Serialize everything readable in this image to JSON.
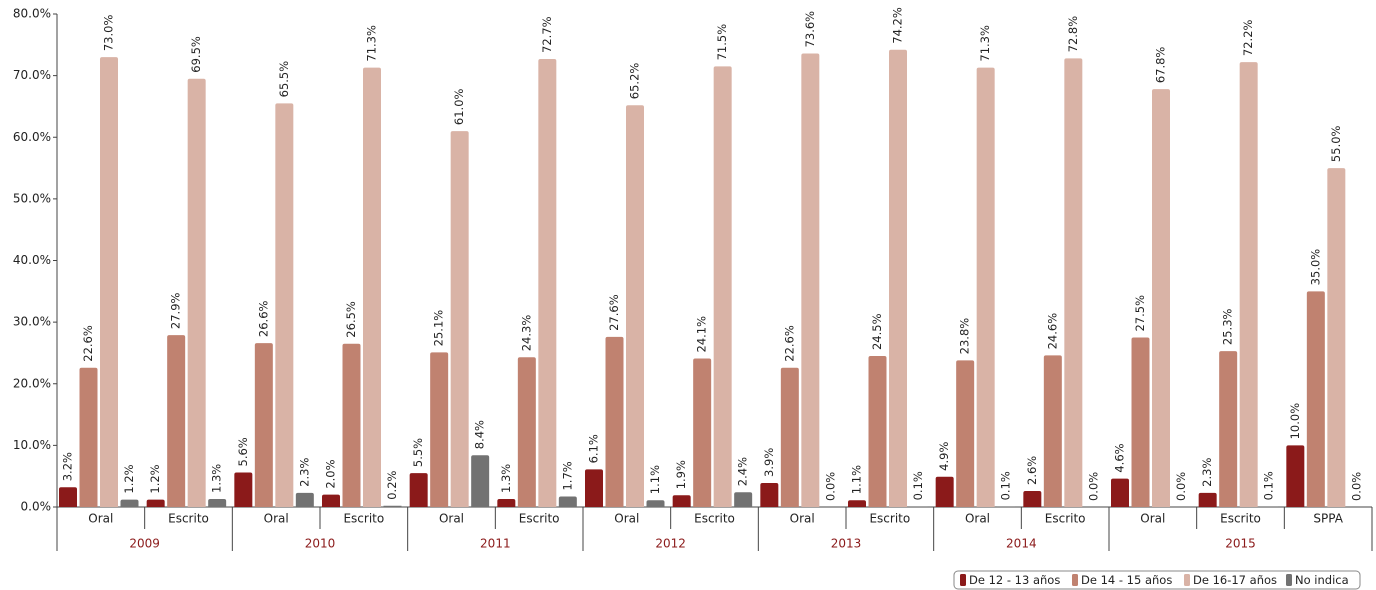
{
  "chart_data": {
    "type": "bar",
    "groups": [
      {
        "name": "2009",
        "categories": [
          "Oral",
          "Escrito"
        ]
      },
      {
        "name": "2010",
        "categories": [
          "Oral",
          "Escrito"
        ]
      },
      {
        "name": "2011",
        "categories": [
          "Oral",
          "Escrito"
        ]
      },
      {
        "name": "2012",
        "categories": [
          "Oral",
          "Escrito"
        ]
      },
      {
        "name": "2013",
        "categories": [
          "Oral",
          "Escrito"
        ]
      },
      {
        "name": "2014",
        "categories": [
          "Oral",
          "Escrito"
        ]
      },
      {
        "name": "2015",
        "categories": [
          "Oral",
          "Escrito",
          "SPPA"
        ]
      }
    ],
    "series": [
      {
        "name": "De 12 - 13 años",
        "color": "#8b1a1a",
        "values": [
          3.2,
          1.2,
          5.6,
          2.0,
          5.5,
          1.3,
          6.1,
          1.9,
          3.9,
          1.1,
          4.9,
          2.6,
          4.6,
          2.3,
          10.0
        ],
        "value_labels": [
          "3.2%",
          "1.2%",
          "5.6%",
          "2.0%",
          "5.5%",
          "1.3%",
          "6.1%",
          "1.9%",
          "3.9%",
          "1.1%",
          "4.9%",
          "2.6%",
          "4.6%",
          "2.3%",
          "10.0%"
        ]
      },
      {
        "name": "De 14 - 15 años",
        "color": "#c08270",
        "values": [
          22.6,
          27.9,
          26.6,
          26.5,
          25.1,
          24.3,
          27.6,
          24.1,
          22.6,
          24.5,
          23.8,
          24.6,
          27.5,
          25.3,
          35.0
        ],
        "value_labels": [
          "22.6%",
          "27.9%",
          "26.6%",
          "26.5%",
          "25.1%",
          "24.3%",
          "27.6%",
          "24.1%",
          "22.6%",
          "24.5%",
          "23.8%",
          "24.6%",
          "27.5%",
          "25.3%",
          "35.0%"
        ]
      },
      {
        "name": "De 16-17 años",
        "color": "#d9b3a6",
        "values": [
          73.0,
          69.5,
          65.5,
          71.3,
          61.0,
          72.7,
          65.2,
          71.5,
          73.6,
          74.2,
          71.3,
          72.8,
          67.8,
          72.2,
          55.0
        ],
        "value_labels": [
          "73.0%",
          "69.5%",
          "65.5%",
          "71.3%",
          "61.0%",
          "72.7%",
          "65.2%",
          "71.5%",
          "73.6%",
          "74.2%",
          "71.3%",
          "72.8%",
          "67.8%",
          "72.2%",
          "55.0%"
        ]
      },
      {
        "name": "No indica",
        "color": "#727272",
        "values": [
          1.2,
          1.3,
          2.3,
          0.2,
          8.4,
          1.7,
          1.1,
          2.4,
          0.0,
          0.1,
          0.1,
          0.0,
          0.0,
          0.1,
          0.0
        ],
        "value_labels": [
          "1.2%",
          "1.3%",
          "2.3%",
          "0.2%",
          "8.4%",
          "1.7%",
          "1.1%",
          "2.4%",
          "0.0%",
          "0.1%",
          "0.1%",
          "0.0%",
          "0.0%",
          "0.1%",
          "0.0%"
        ]
      }
    ],
    "ylim": [
      0,
      80
    ],
    "yticks": [
      {
        "value": 0,
        "label": "0.0%"
      },
      {
        "value": 10,
        "label": "10.0%"
      },
      {
        "value": 20,
        "label": "20.0%"
      },
      {
        "value": 30,
        "label": "30.0%"
      },
      {
        "value": 40,
        "label": "40.0%"
      },
      {
        "value": 50,
        "label": "50.0%"
      },
      {
        "value": 60,
        "label": "60.0%"
      },
      {
        "value": 70,
        "label": "70.0%"
      },
      {
        "value": 80,
        "label": "80.0%"
      }
    ],
    "legend": "bottom-right"
  }
}
